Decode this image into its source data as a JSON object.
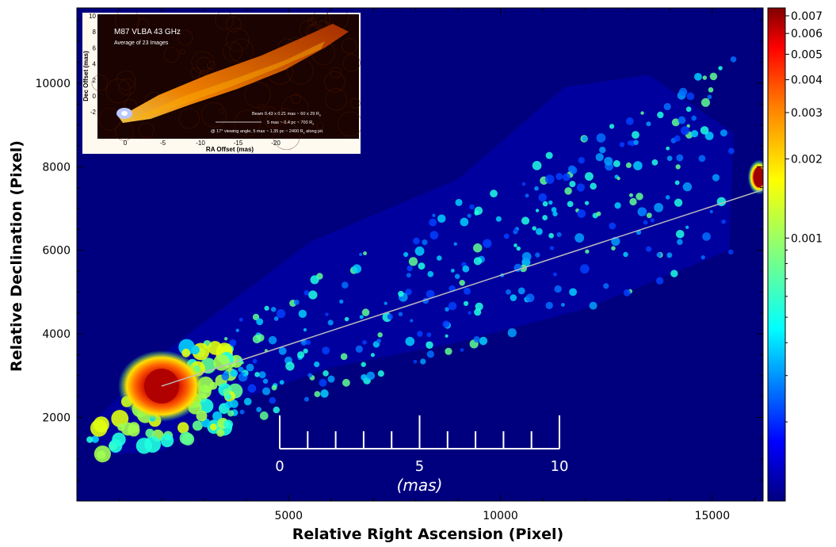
{
  "chart_data": {
    "type": "heatmap",
    "title": "",
    "xlabel": "Relative Right Ascension (Pixel)",
    "ylabel": "Relative Declination (Pixel)",
    "xlim": [
      0,
      16200
    ],
    "ylim": [
      0,
      11800
    ],
    "x_ticks": [
      5000,
      10000,
      15000
    ],
    "y_ticks": [
      2000,
      4000,
      6000,
      8000,
      10000
    ],
    "grid": false,
    "colormap": "jet",
    "colorbar": {
      "scale": "log",
      "range": [
        0.0001,
        0.0075
      ],
      "ticks": [
        "0.007",
        "0.006",
        "0.005",
        "0.004",
        "0.003",
        "0.002",
        "0.001"
      ],
      "tick_values": [
        0.007,
        0.006,
        0.005,
        0.004,
        0.003,
        0.002,
        0.001
      ]
    },
    "features": {
      "core_peak": {
        "x": 2000,
        "y": 2750,
        "level": "max"
      },
      "bright_knot_right": {
        "x": 16100,
        "y": 7750,
        "level": "max"
      },
      "jet_axis_line": {
        "from": {
          "x": 2000,
          "y": 2750
        },
        "to": {
          "x": 16200,
          "y": 7450
        }
      }
    },
    "scale_bar": {
      "ticks": [
        "0",
        "5",
        "10"
      ],
      "unit": "(mas)",
      "minor_divisions": 10
    }
  },
  "inset": {
    "title": "M87  VLBA  43 GHz",
    "subtitle": "Average of 23 Images",
    "beam_note": "Beam 0.43 x 0.21 mas ~ 60 x 29 R",
    "beam_sub": "s",
    "scale_note": "5 mas ~ 0.4 pc ~ 700 R",
    "scale_sub": "s",
    "angle_note": "@ 17° viewing angle, 5 mas ~ 1.35 pc ~ 2400 R",
    "angle_sub": "s",
    "angle_tail": " along jet.",
    "xlabel": "RA Offset (mas)",
    "ylabel": "Dec Offset (mas)",
    "x_ticks": [
      "0",
      "-5",
      "-10",
      "-15",
      "-20"
    ],
    "y_ticks": [
      "10",
      "8",
      "6",
      "4",
      "2",
      "0",
      "-2"
    ]
  },
  "colors": {
    "background": "#00007f",
    "line": "#bdbdbd",
    "inset_bg": "#2a0500",
    "inset_jet": "#ff7a00"
  }
}
